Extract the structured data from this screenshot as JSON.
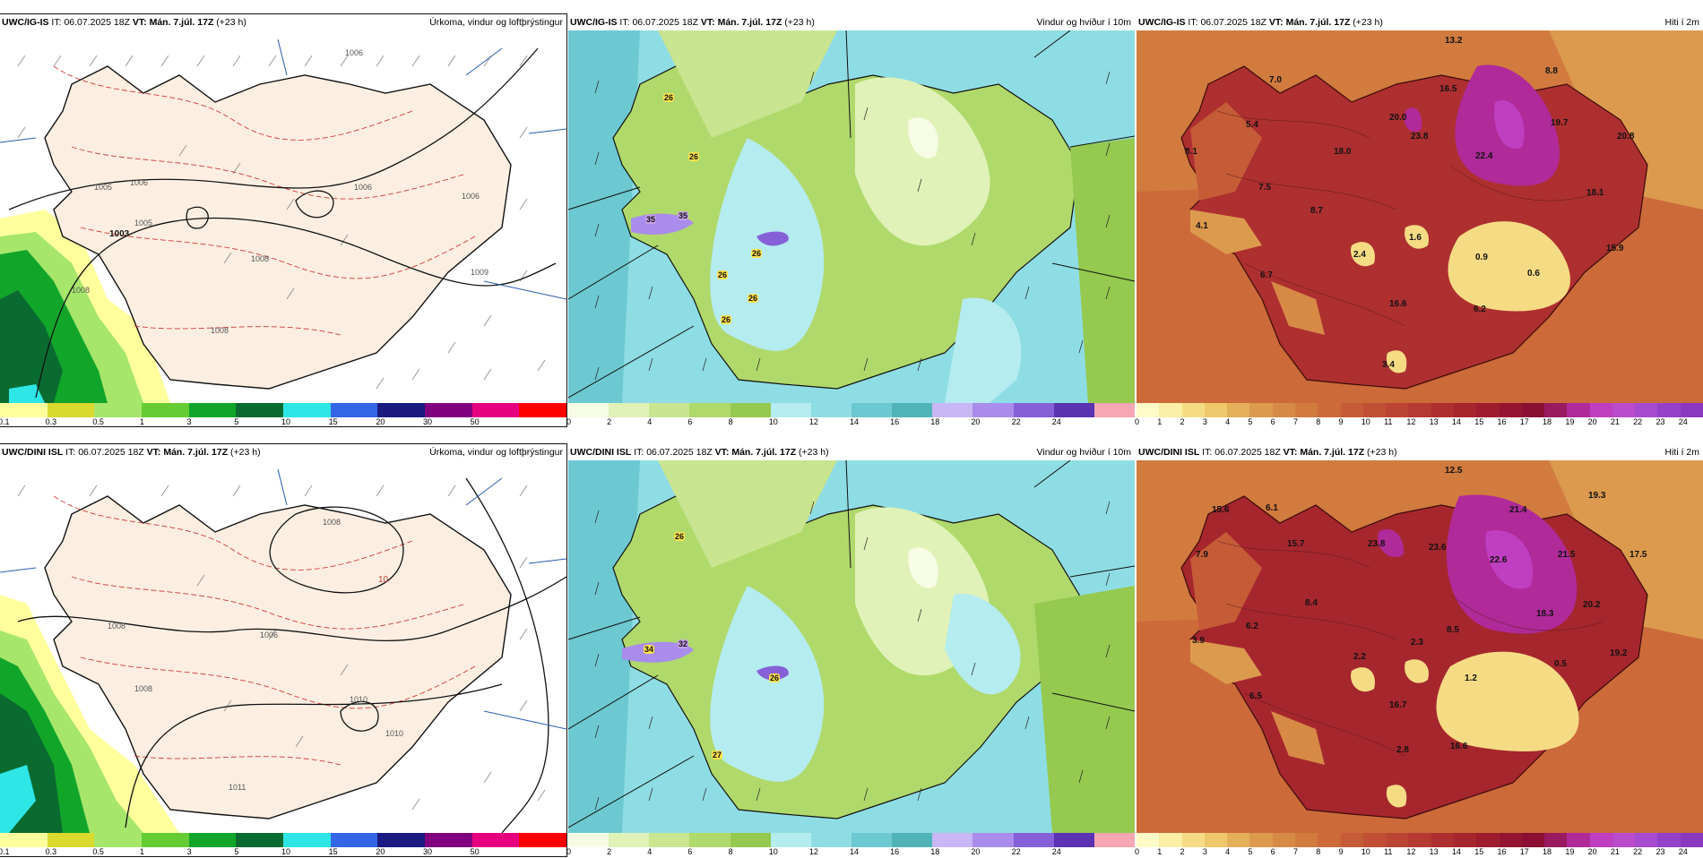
{
  "rows": [
    {
      "model": "UWC/IG-IS",
      "it_label": "IT:",
      "it_value": "06.07.2025 18Z",
      "vt_label": "VT:",
      "vt_value": "Mán. 7.júl. 17Z",
      "lead": "(+23 h)",
      "precip_title": "Úrkoma, vindur og loftþrýstingur",
      "wind_title": "Vindur og hviður í 10m",
      "temp_title": "Hiti í 2m",
      "isobars": [
        "1006",
        "1006",
        "1005",
        "1006",
        "1008",
        "1005",
        "1006",
        "1009",
        "1008",
        "1008"
      ],
      "precip_labels": [
        "1003"
      ],
      "gust_labels": [
        "26",
        "26",
        "35",
        "35",
        "26",
        "26",
        "26",
        "26"
      ],
      "temp_values": [
        "13.2",
        "7.0",
        "8.8",
        "5.4",
        "16.5",
        "20.0",
        "19.7",
        "8.1",
        "18.0",
        "22.4",
        "23.8",
        "20.8",
        "7.5",
        "18.1",
        "8.7",
        "4.1",
        "2.4",
        "1.6",
        "15.9",
        "0.9",
        "0.6",
        "6.7",
        "16.6",
        "6.2",
        "3.4"
      ]
    },
    {
      "model": "UWC/DINI ISL",
      "it_label": "IT:",
      "it_value": "06.07.2025 18Z",
      "vt_label": "VT:",
      "vt_value": "Mán. 7.júl. 17Z",
      "lead": "(+23 h)",
      "precip_title": "Úrkoma, vindur og loftþrýstingur",
      "wind_title": "Vindur og hviður í 10m",
      "temp_title": "Hiti í 2m",
      "isobars": [
        "1008",
        "1006",
        "1008",
        "1010",
        "1011",
        "1010",
        "1008"
      ],
      "precip_labels": [
        "10"
      ],
      "gust_labels": [
        "26",
        "34",
        "32",
        "26",
        "27"
      ],
      "temp_values": [
        "12.5",
        "15.6",
        "6.1",
        "19.3",
        "21.4",
        "7.9",
        "15.7",
        "23.8",
        "23.6",
        "22.6",
        "21.5",
        "17.5",
        "8.4",
        "18.3",
        "20.2",
        "6.2",
        "8.5",
        "3.9",
        "2.2",
        "2.3",
        "19.2",
        "0.5",
        "1.2",
        "6.5",
        "16.7",
        "2.8",
        "16.6"
      ]
    }
  ],
  "precip_scale": {
    "ticks": [
      "0.1",
      "0.3",
      "0.5",
      "1",
      "3",
      "5",
      "10",
      "15",
      "20",
      "30",
      "50"
    ],
    "colors": [
      "#ffff9e",
      "#d9d92e",
      "#a6e66b",
      "#66cc33",
      "#11a629",
      "#0a6b30",
      "#2ee6e6",
      "#3366e6",
      "#1a1a80",
      "#800080",
      "#e60080",
      "#ff0000"
    ]
  },
  "wind_scale": {
    "ticks": [
      "0",
      "2",
      "4",
      "6",
      "8",
      "10",
      "12",
      "14",
      "16",
      "18",
      "20",
      "22",
      "24"
    ],
    "colors": [
      "#f7fce4",
      "#e0f2b8",
      "#c9e58f",
      "#b0d96b",
      "#95c94f",
      "#b4ecf0",
      "#8fdde4",
      "#6cc9d1",
      "#4fb3b8",
      "#c9b6f5",
      "#a98ceb",
      "#8660d6",
      "#5b33b3",
      "#f7a6b3"
    ]
  },
  "temp_scale": {
    "ticks": [
      "0",
      "1",
      "2",
      "3",
      "4",
      "5",
      "6",
      "7",
      "8",
      "9",
      "10",
      "11",
      "12",
      "13",
      "14",
      "15",
      "16",
      "17",
      "18",
      "19",
      "20",
      "21",
      "22",
      "23",
      "24"
    ],
    "colors": [
      "#fffbc8",
      "#fbeea6",
      "#f5dc84",
      "#eec86a",
      "#e4b05a",
      "#dc9a4e",
      "#d78a46",
      "#d27b3f",
      "#cc6a3a",
      "#c65c37",
      "#c04f34",
      "#bb4533",
      "#b53a31",
      "#ae2f30",
      "#a6262e",
      "#9d1d2e",
      "#941530",
      "#8a0f33",
      "#9a1a60",
      "#b02a9a",
      "#c03ec0",
      "#b94bcc",
      "#a64ad0",
      "#9540c8",
      "#8a38c0"
    ]
  },
  "colors": {
    "land_precip": "#fcefe1",
    "sea_precip": "#ffffff",
    "isobar": "#111111",
    "temp_contour": "#d23a3a",
    "coast": "#111111"
  }
}
